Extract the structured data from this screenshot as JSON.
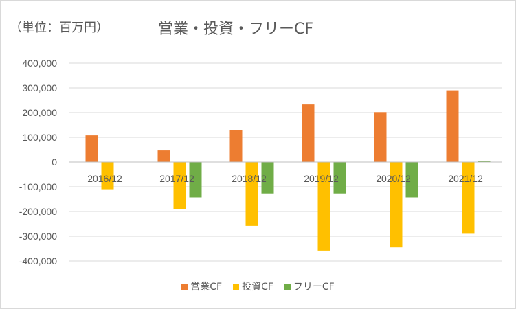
{
  "unit_label": "（単位：百万円）",
  "chart_data": {
    "type": "bar",
    "title": "営業・投資・フリーCF",
    "xlabel": "",
    "ylabel": "",
    "ylim": [
      -400000,
      400000
    ],
    "yticks": [
      400000,
      300000,
      200000,
      100000,
      0,
      -100000,
      -200000,
      -300000,
      -400000
    ],
    "ytick_labels": [
      "400,000",
      "300,000",
      "200,000",
      "100,000",
      "0",
      "-100,000",
      "-200,000",
      "-300,000",
      "-400,000"
    ],
    "grid": true,
    "legend_position": "bottom",
    "categories": [
      "2016/12",
      "2017/12",
      "2018/12",
      "2019/12",
      "2020/12",
      "2021/12"
    ],
    "series": [
      {
        "name": "営業CF",
        "color": "#ed7d31",
        "values": [
          108000,
          47000,
          130000,
          233000,
          202000,
          290000
        ]
      },
      {
        "name": "投資CF",
        "color": "#ffc000",
        "values": [
          -110000,
          -190000,
          -258000,
          -358000,
          -345000,
          -290000
        ]
      },
      {
        "name": "フリーCF",
        "color": "#70ad47",
        "values": [
          null,
          -143000,
          -127000,
          -127000,
          -143000,
          3000
        ]
      }
    ]
  }
}
